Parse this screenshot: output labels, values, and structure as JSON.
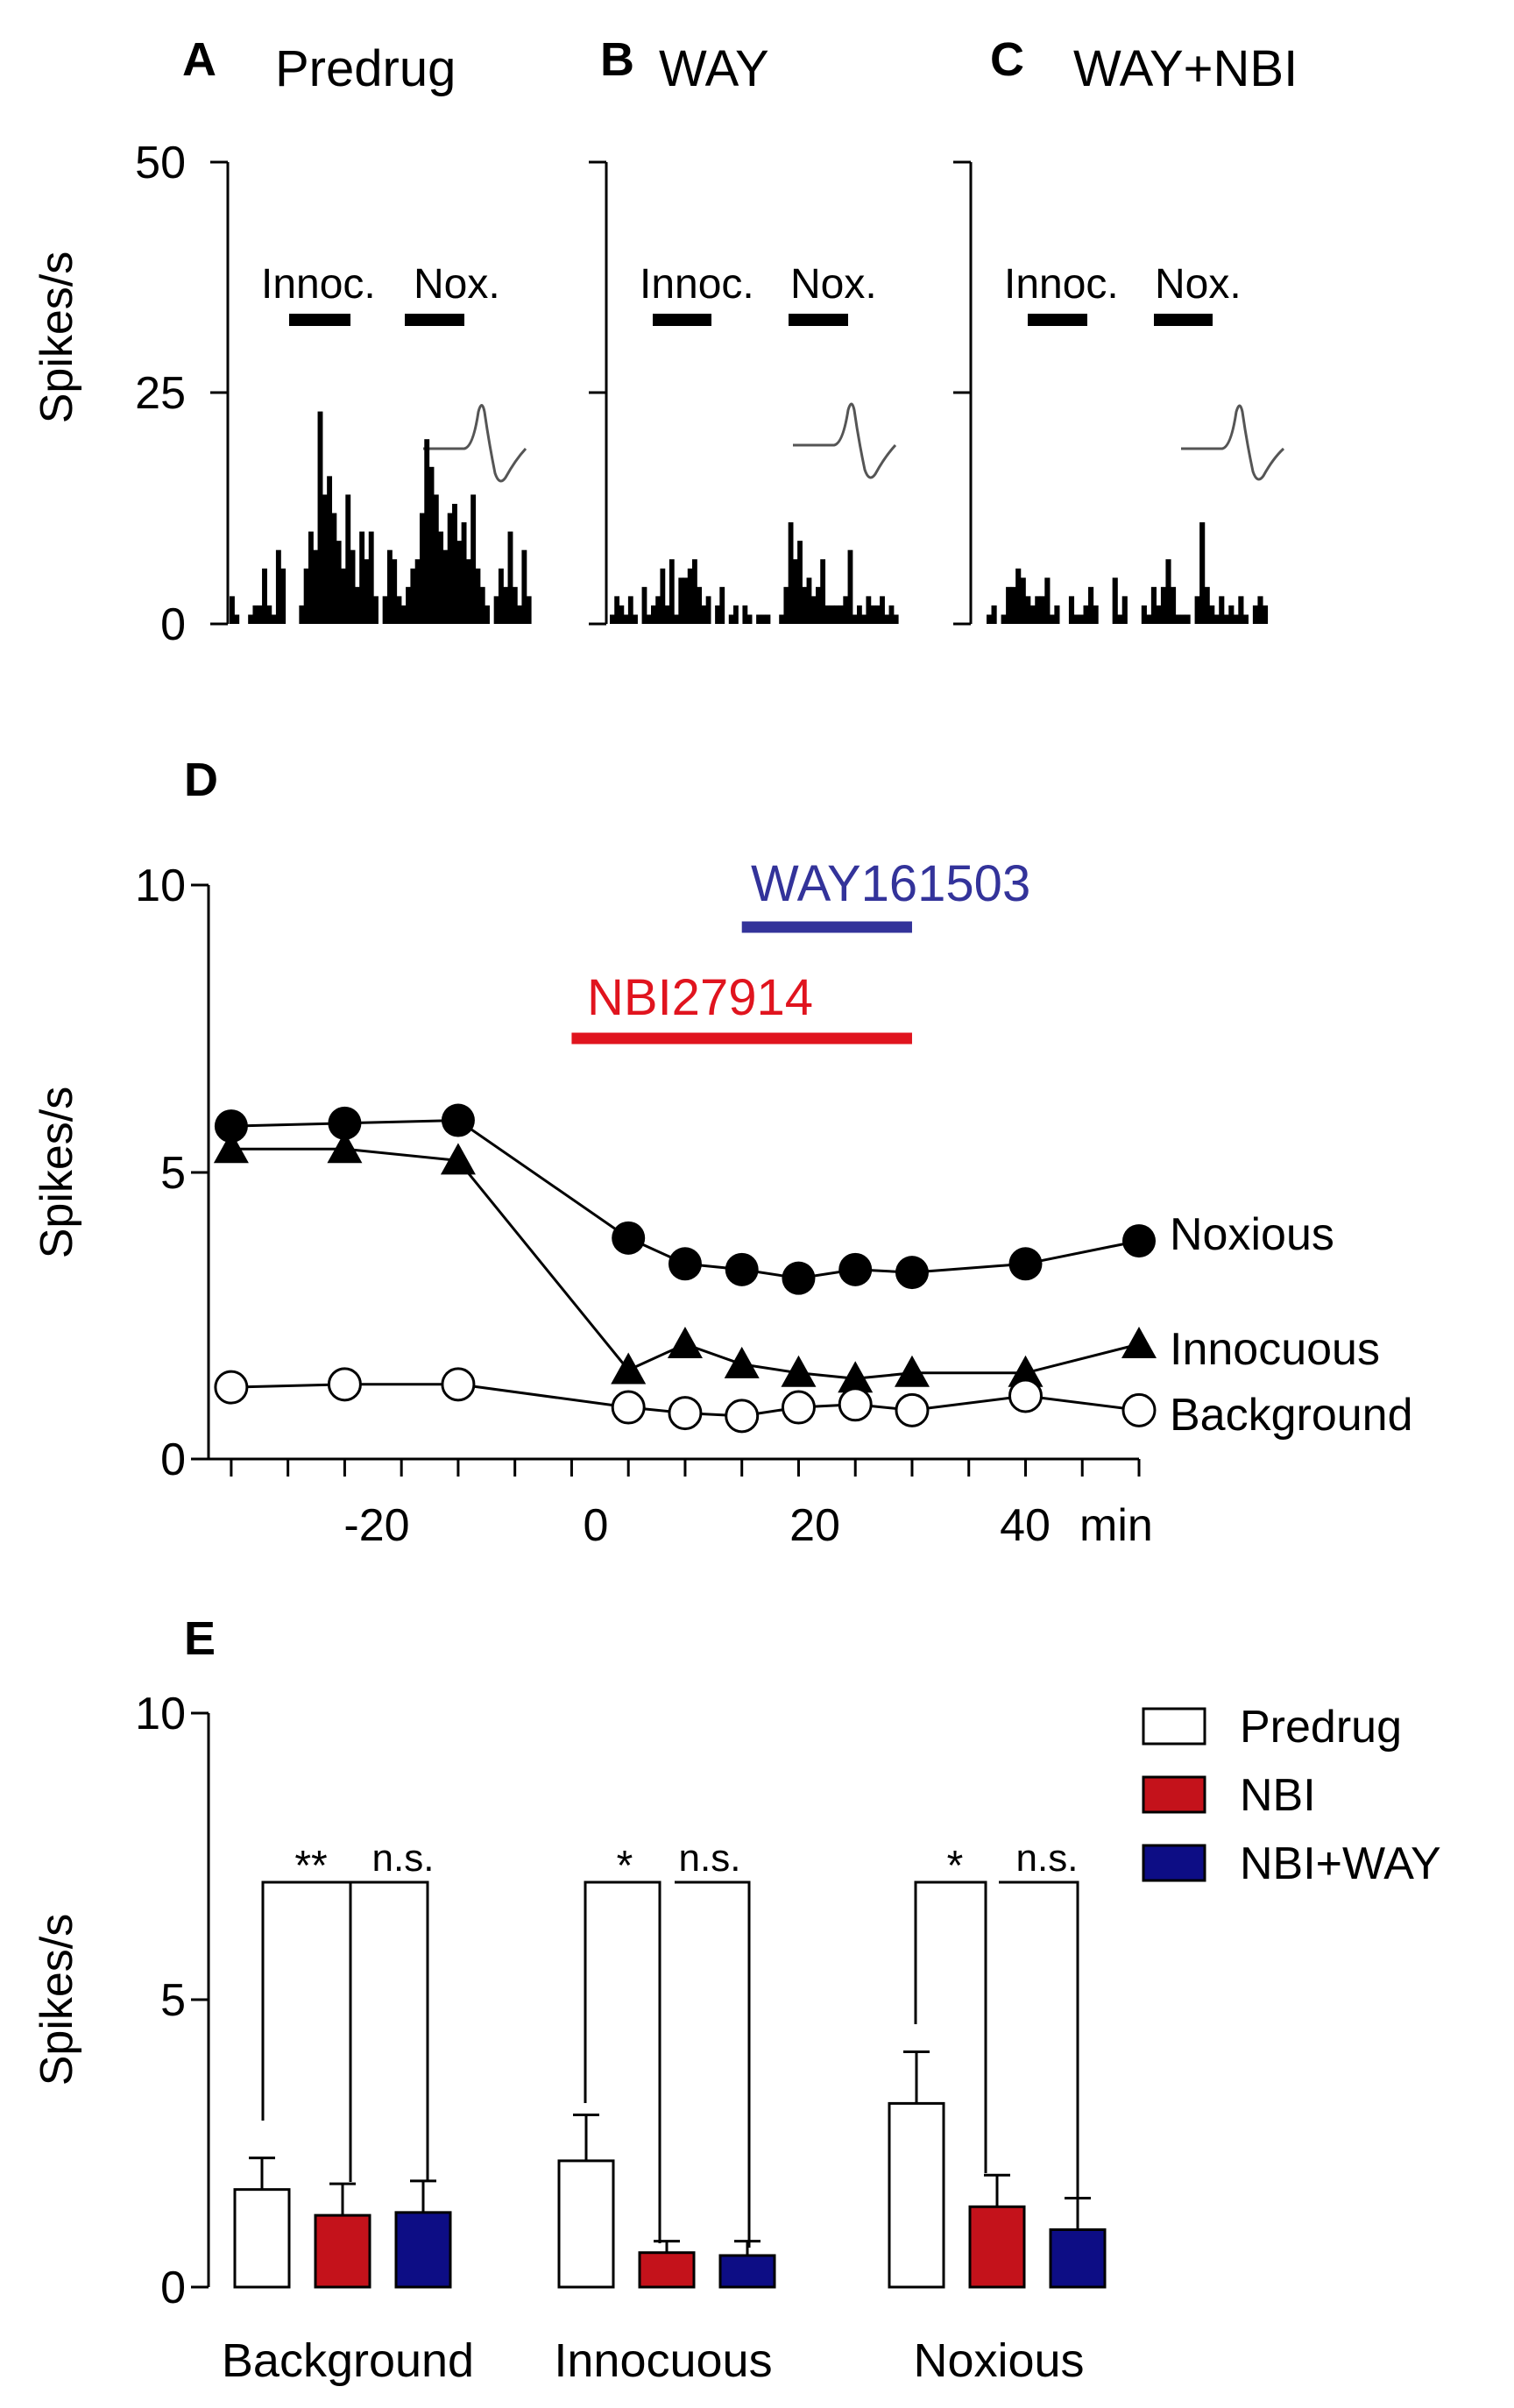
{
  "chart_data": [
    {
      "panel": "A",
      "type": "bar",
      "title": "Predrug",
      "ylabel": "Spikes/s",
      "yticks": [
        "0",
        "25",
        "50"
      ],
      "ylim": [
        0,
        50
      ],
      "stim_labels": [
        "Innoc.",
        "Nox."
      ],
      "values": [
        3,
        1,
        0,
        0,
        1,
        2,
        2,
        6,
        2,
        1,
        8,
        6,
        0,
        0,
        0,
        2,
        6,
        10,
        8,
        23,
        14,
        16,
        12,
        9,
        6,
        14,
        8,
        4,
        10,
        7,
        10,
        3,
        0,
        3,
        8,
        7,
        3,
        2,
        4,
        6,
        7,
        12,
        20,
        17,
        14,
        10,
        8,
        12,
        13,
        9,
        11,
        7,
        14,
        6,
        4,
        2,
        0,
        3,
        6,
        4,
        10,
        4,
        2,
        8,
        3
      ]
    },
    {
      "panel": "B",
      "type": "bar",
      "title": "WAY",
      "ylabel": "",
      "yticks": [],
      "ylim": [
        0,
        50
      ],
      "stim_labels": [
        "Innoc.",
        "Nox."
      ],
      "values": [
        1,
        3,
        2,
        1,
        3,
        1,
        0,
        4,
        1,
        2,
        3,
        6,
        2,
        7,
        1,
        5,
        5,
        6,
        7,
        4,
        2,
        3,
        0,
        2,
        4,
        0,
        1,
        2,
        0,
        2,
        1,
        0,
        1,
        1,
        1,
        0,
        0,
        1,
        4,
        11,
        7,
        9,
        4,
        5,
        3,
        4,
        7,
        2,
        2,
        2,
        2,
        3,
        8,
        1,
        2,
        1,
        3,
        2,
        2,
        3,
        1,
        2,
        1
      ]
    },
    {
      "panel": "C",
      "type": "bar",
      "title": "WAY+NBI",
      "ylabel": "",
      "yticks": [],
      "ylim": [
        0,
        50
      ],
      "stim_labels": [
        "Innoc.",
        "Nox."
      ],
      "values": [
        1,
        2,
        0,
        1,
        4,
        4,
        6,
        5,
        3,
        2,
        3,
        3,
        5,
        1,
        2,
        0,
        0,
        3,
        1,
        1,
        2,
        4,
        2,
        0,
        0,
        0,
        5,
        1,
        3,
        0,
        0,
        0,
        2,
        1,
        4,
        2,
        4,
        7,
        4,
        1,
        1,
        1,
        0,
        3,
        11,
        4,
        2,
        1,
        3,
        1,
        2,
        1,
        3,
        1,
        0,
        2,
        3,
        2,
        0
      ]
    },
    {
      "panel": "D",
      "type": "line",
      "ylabel": "Spikes/s",
      "xlabel_suffix": "min",
      "xticks": [
        "-20",
        "0",
        "20",
        "40"
      ],
      "yticks": [
        "0",
        "5",
        "10"
      ],
      "xlim": [
        -32,
        50
      ],
      "ylim": [
        0,
        10
      ],
      "drug_bars": [
        {
          "name": "WAY161503",
          "start": 15,
          "end": 30,
          "color": "#33339a"
        },
        {
          "name": "NBI27914",
          "start": 0,
          "end": 30,
          "color": "#e0141e"
        }
      ],
      "series": [
        {
          "name": "Noxious",
          "marker": "filled-circle",
          "x": [
            -30,
            -20,
            -10,
            5,
            10,
            15,
            20,
            25,
            30,
            40,
            50
          ],
          "y": [
            5.8,
            5.85,
            5.9,
            3.85,
            3.4,
            3.3,
            3.15,
            3.3,
            3.25,
            3.4,
            3.8
          ]
        },
        {
          "name": "Innocuous",
          "marker": "filled-triangle",
          "x": [
            -30,
            -20,
            -10,
            5,
            10,
            15,
            20,
            25,
            30,
            40,
            50
          ],
          "y": [
            5.4,
            5.4,
            5.2,
            1.55,
            2.0,
            1.65,
            1.5,
            1.4,
            1.5,
            1.5,
            2.0
          ]
        },
        {
          "name": "Background",
          "marker": "open-circle",
          "x": [
            -30,
            -20,
            -10,
            5,
            10,
            15,
            20,
            25,
            30,
            40,
            50
          ],
          "y": [
            1.25,
            1.3,
            1.3,
            0.9,
            0.8,
            0.75,
            0.9,
            0.95,
            0.85,
            1.1,
            0.85
          ]
        }
      ]
    },
    {
      "panel": "E",
      "type": "bar",
      "ylabel": "Spikes/s",
      "yticks": [
        "0",
        "5",
        "10"
      ],
      "ylim": [
        0,
        10
      ],
      "categories": [
        "Background",
        "Innocuous",
        "Noxious"
      ],
      "series": [
        {
          "name": "Predrug",
          "color": "#ffffff",
          "values": [
            1.7,
            2.2,
            3.2
          ],
          "errors": [
            0.55,
            0.8,
            0.9
          ]
        },
        {
          "name": "NBI",
          "color": "#c4121b",
          "values": [
            1.25,
            0.6,
            1.4
          ],
          "errors": [
            0.55,
            0.2,
            0.55
          ]
        },
        {
          "name": "NBI+WAY",
          "color": "#0d0d85",
          "values": [
            1.3,
            0.55,
            1.0
          ],
          "errors": [
            0.55,
            0.25,
            0.55
          ]
        }
      ],
      "significance": [
        {
          "category": "Background",
          "left": "**",
          "right": "n.s."
        },
        {
          "category": "Innocuous",
          "left": "*",
          "right": "n.s."
        },
        {
          "category": "Noxious",
          "left": "*",
          "right": "n.s."
        }
      ]
    }
  ]
}
